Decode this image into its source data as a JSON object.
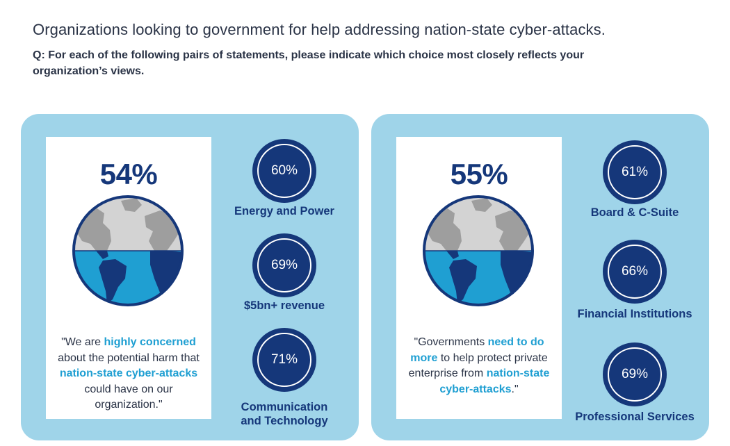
{
  "headline": "Organizations looking to government for help addressing nation-state cyber-attacks.",
  "question": "Q: For each of the following pairs of statements, please indicate which choice most closely reflects your organization’s views.",
  "colors": {
    "navy": "#15377a",
    "panel": "#9fd4e9",
    "highlight": "#1f9fd2",
    "globe_land_top": "#9e9e9e",
    "globe_sea_top": "#d3d3d3",
    "globe_sea_bottom": "#1f9fd2"
  },
  "icons": {
    "globe": "globe-icon"
  },
  "left_panel": {
    "percent": "54%",
    "quote": {
      "p1": "\"We are ",
      "h1": "highly concerned",
      "p2": " about the potential harm that ",
      "h2": "nation-state cyber-attacks",
      "p3": " could have on our organization.\""
    },
    "stats": [
      {
        "value": "60%",
        "label": "Energy and Power"
      },
      {
        "value": "69%",
        "label": "$5bn+ revenue"
      },
      {
        "value": "71%",
        "label_line1": "Communication",
        "label_line2": "and Technology"
      }
    ]
  },
  "right_panel": {
    "percent": "55%",
    "quote": {
      "p1": "\"Governments ",
      "h1": "need to do more",
      "p2": " to help protect private enterprise from ",
      "h2": "nation-state cyber-attacks",
      "p3": ".\""
    },
    "stats": [
      {
        "value": "61%",
        "label": "Board & C-Suite"
      },
      {
        "value": "66%",
        "label": "Financial Institutions"
      },
      {
        "value": "69%",
        "label": "Professional Services"
      }
    ]
  }
}
